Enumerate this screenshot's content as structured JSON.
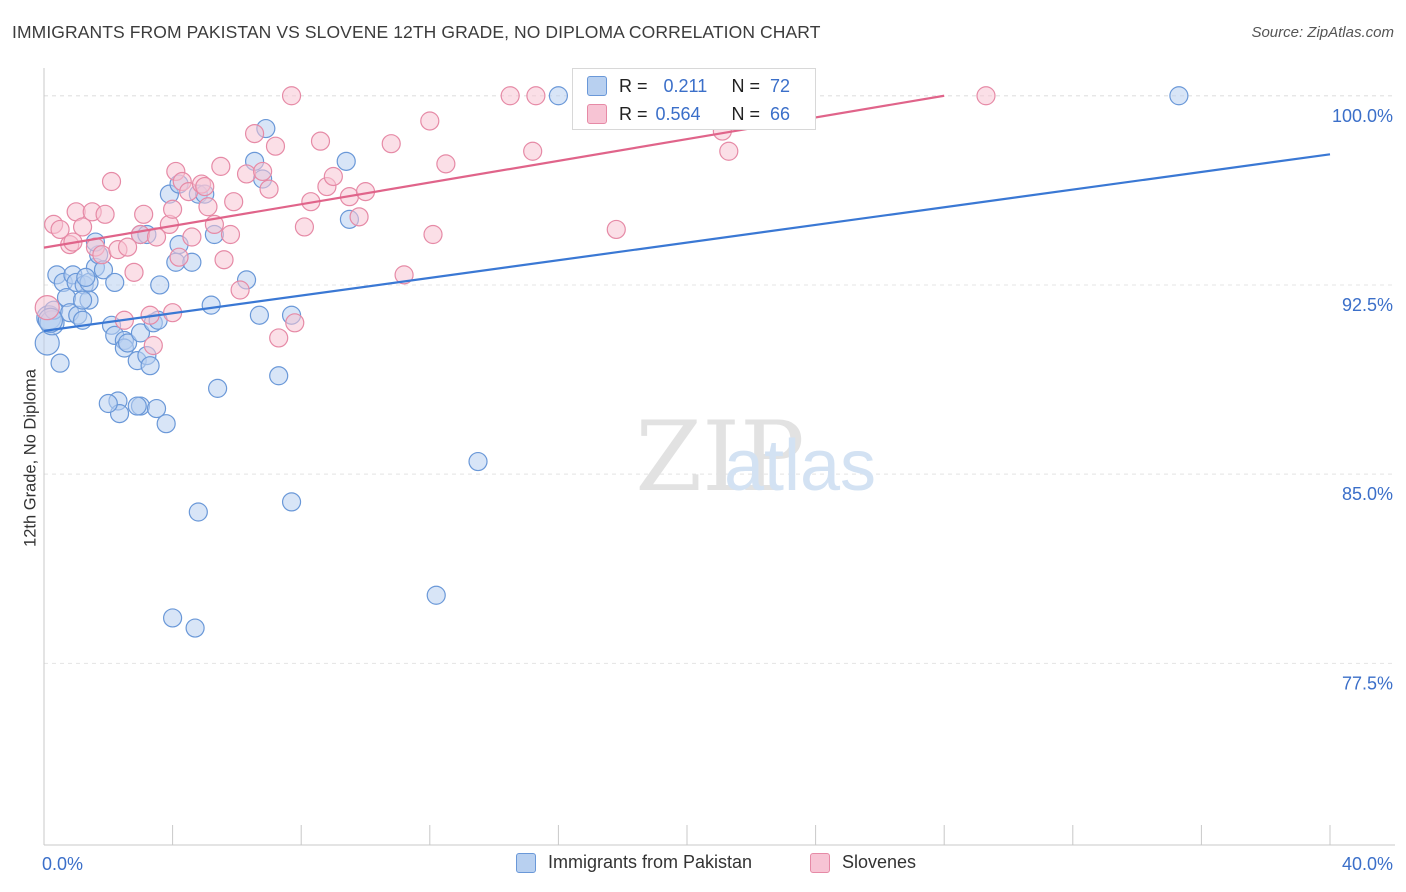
{
  "title": "IMMIGRANTS FROM PAKISTAN VS SLOVENE 12TH GRADE, NO DIPLOMA CORRELATION CHART",
  "source": "Source: ZipAtlas.com",
  "watermark": {
    "zip": "ZIP",
    "atlas": "atlas"
  },
  "legend_top": [
    {
      "r_label": "R =",
      "r_value": "0.211",
      "n_label": "N =",
      "n_value": "72",
      "fill": "#b8d0f0",
      "stroke": "#6a98d8"
    },
    {
      "r_label": "R =",
      "r_value": "0.564",
      "n_label": "N =",
      "n_value": "66",
      "fill": "#f7c4d4",
      "stroke": "#e68aa6"
    }
  ],
  "legend_bottom": [
    {
      "label": "Immigrants from Pakistan",
      "fill": "#b8d0f0",
      "stroke": "#6a98d8"
    },
    {
      "label": "Slovenes",
      "fill": "#f7c4d4",
      "stroke": "#e68aa6"
    }
  ],
  "chart_data": {
    "type": "scatter",
    "title": "IMMIGRANTS FROM PAKISTAN VS SLOVENE 12TH GRADE, NO DIPLOMA CORRELATION CHART",
    "xlabel": "",
    "ylabel": "12th Grade, No Diploma",
    "xlim": [
      0,
      40
    ],
    "ylim": [
      70.3,
      101.1
    ],
    "x_tick_labels": [
      {
        "value": 0,
        "label": "0.0%"
      },
      {
        "value": 40,
        "label": "40.0%"
      }
    ],
    "y_ticks": [
      {
        "value": 100,
        "label": "100.0%"
      },
      {
        "value": 92.5,
        "label": "92.5%"
      },
      {
        "value": 85,
        "label": "85.0%"
      },
      {
        "value": 77.5,
        "label": "77.5%"
      }
    ],
    "grid": true,
    "series": [
      {
        "name": "Immigrants from Pakistan",
        "color": "#3a78d4",
        "fill": "#b8d0f0",
        "stroke": "#6a98d8",
        "R": 0.211,
        "N": 72,
        "trend": {
          "x": [
            0,
            40
          ],
          "y": [
            90.68,
            97.68
          ]
        },
        "points": [
          [
            0.1,
            90.2
          ],
          [
            0.15,
            91.2
          ],
          [
            0.25,
            91.0
          ],
          [
            0.3,
            91.5
          ],
          [
            0.5,
            89.4
          ],
          [
            0.4,
            92.9
          ],
          [
            0.6,
            92.6
          ],
          [
            0.7,
            92.0
          ],
          [
            0.8,
            91.4
          ],
          [
            0.9,
            92.9
          ],
          [
            1.0,
            92.6
          ],
          [
            1.05,
            91.3
          ],
          [
            1.2,
            91.1
          ],
          [
            1.25,
            92.5
          ],
          [
            1.4,
            92.6
          ],
          [
            1.4,
            91.9
          ],
          [
            1.6,
            93.2
          ],
          [
            1.7,
            93.7
          ],
          [
            1.85,
            93.1
          ],
          [
            2.2,
            92.6
          ],
          [
            1.6,
            94.2
          ],
          [
            2.1,
            90.9
          ],
          [
            2.2,
            90.5
          ],
          [
            2.5,
            90.3
          ],
          [
            2.5,
            90.0
          ],
          [
            2.6,
            90.2
          ],
          [
            2.9,
            89.5
          ],
          [
            3.0,
            90.6
          ],
          [
            3.2,
            89.7
          ],
          [
            3.3,
            89.3
          ],
          [
            3.4,
            91.0
          ],
          [
            3.55,
            91.1
          ],
          [
            3.0,
            94.5
          ],
          [
            3.2,
            94.5
          ],
          [
            3.6,
            92.5
          ],
          [
            4.1,
            93.4
          ],
          [
            4.2,
            94.1
          ],
          [
            3.9,
            96.1
          ],
          [
            4.2,
            96.5
          ],
          [
            4.6,
            93.4
          ],
          [
            4.8,
            96.1
          ],
          [
            5.2,
            91.7
          ],
          [
            5.4,
            88.4
          ],
          [
            5.3,
            94.5
          ],
          [
            6.3,
            92.7
          ],
          [
            6.7,
            91.3
          ],
          [
            6.8,
            96.7
          ],
          [
            6.55,
            97.4
          ],
          [
            6.9,
            98.7
          ],
          [
            7.3,
            88.9
          ],
          [
            7.7,
            91.3
          ],
          [
            2.3,
            87.9
          ],
          [
            2.35,
            87.4
          ],
          [
            3.0,
            87.7
          ],
          [
            3.5,
            87.6
          ],
          [
            3.8,
            87.0
          ],
          [
            4.8,
            83.5
          ],
          [
            7.7,
            83.9
          ],
          [
            9.4,
            97.4
          ],
          [
            9.5,
            95.1
          ],
          [
            13.5,
            85.5
          ],
          [
            12.2,
            80.2
          ],
          [
            4.0,
            79.3
          ],
          [
            4.7,
            78.9
          ],
          [
            16.0,
            100.0
          ],
          [
            35.3,
            100.0
          ],
          [
            2.9,
            87.7
          ],
          [
            2.0,
            87.8
          ],
          [
            5.0,
            96.1
          ],
          [
            1.3,
            92.8
          ],
          [
            0.2,
            91.1
          ],
          [
            1.2,
            91.9
          ]
        ]
      },
      {
        "name": "Slovenes",
        "color": "#e0648a",
        "fill": "#f7c4d4",
        "stroke": "#e68aa6",
        "R": 0.564,
        "N": 66,
        "trend": {
          "x": [
            0,
            28
          ],
          "y": [
            93.98,
            100.0
          ]
        },
        "points": [
          [
            0.1,
            91.6
          ],
          [
            0.3,
            94.9
          ],
          [
            0.5,
            94.7
          ],
          [
            0.8,
            94.1
          ],
          [
            1.0,
            95.4
          ],
          [
            1.2,
            94.8
          ],
          [
            1.5,
            95.4
          ],
          [
            1.6,
            94.0
          ],
          [
            1.8,
            93.7
          ],
          [
            1.9,
            95.3
          ],
          [
            2.1,
            96.6
          ],
          [
            2.3,
            93.9
          ],
          [
            2.5,
            91.1
          ],
          [
            2.8,
            93.0
          ],
          [
            3.0,
            94.5
          ],
          [
            3.1,
            95.3
          ],
          [
            3.3,
            91.3
          ],
          [
            3.4,
            90.1
          ],
          [
            3.5,
            94.4
          ],
          [
            3.9,
            94.9
          ],
          [
            4.0,
            95.5
          ],
          [
            4.1,
            97.0
          ],
          [
            4.2,
            93.6
          ],
          [
            4.3,
            96.6
          ],
          [
            4.5,
            96.2
          ],
          [
            4.6,
            94.4
          ],
          [
            4.9,
            96.5
          ],
          [
            5.1,
            95.6
          ],
          [
            5.3,
            94.9
          ],
          [
            5.5,
            97.2
          ],
          [
            5.6,
            93.5
          ],
          [
            5.8,
            94.5
          ],
          [
            5.9,
            95.8
          ],
          [
            6.1,
            92.3
          ],
          [
            6.3,
            96.9
          ],
          [
            6.55,
            98.5
          ],
          [
            6.8,
            97.0
          ],
          [
            7.0,
            96.3
          ],
          [
            7.2,
            98.0
          ],
          [
            7.3,
            90.4
          ],
          [
            7.8,
            91.0
          ],
          [
            8.1,
            94.8
          ],
          [
            8.3,
            95.8
          ],
          [
            8.6,
            98.2
          ],
          [
            8.8,
            96.4
          ],
          [
            9.0,
            96.8
          ],
          [
            9.5,
            96.0
          ],
          [
            9.8,
            95.2
          ],
          [
            10.0,
            96.2
          ],
          [
            10.8,
            98.1
          ],
          [
            11.2,
            92.9
          ],
          [
            12.0,
            99.0
          ],
          [
            12.1,
            94.5
          ],
          [
            12.5,
            97.3
          ],
          [
            14.5,
            100.0
          ],
          [
            15.3,
            100.0
          ],
          [
            15.2,
            97.8
          ],
          [
            17.8,
            94.7
          ],
          [
            21.1,
            98.6
          ],
          [
            21.3,
            97.8
          ],
          [
            29.3,
            100.0
          ],
          [
            7.7,
            100.0
          ],
          [
            0.9,
            94.2
          ],
          [
            2.6,
            94.0
          ],
          [
            4.0,
            91.4
          ],
          [
            5.0,
            96.4
          ]
        ]
      }
    ]
  }
}
